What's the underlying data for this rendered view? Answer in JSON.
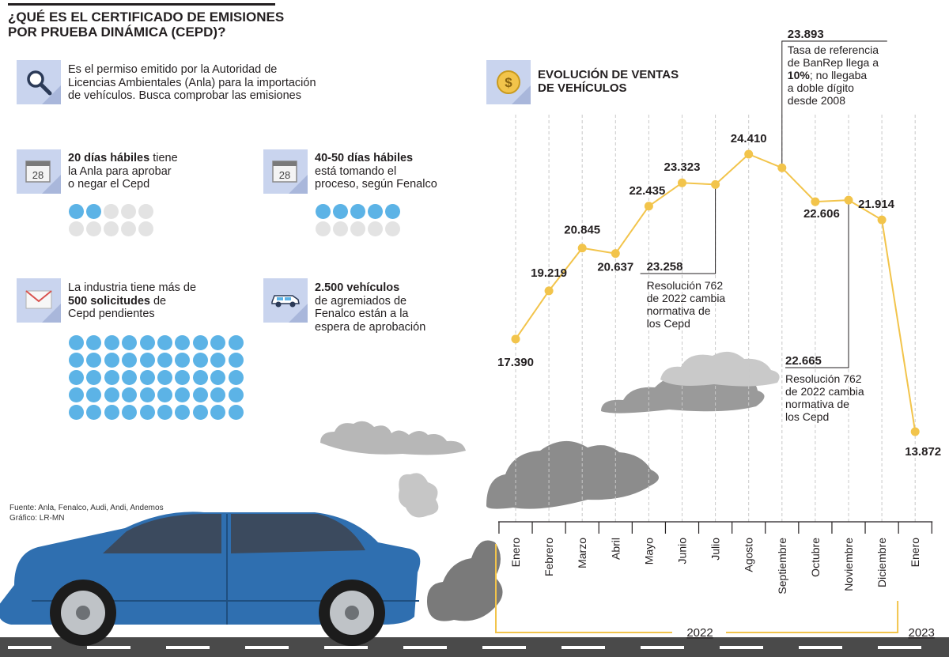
{
  "header": {
    "title_line1": "¿QUÉ ES EL CERTIFICADO DE EMISIONES",
    "title_line2": "POR PRUEBA DINÁMICA (CEPD)?"
  },
  "info": {
    "definition": {
      "icon": "magnifier-icon",
      "line1": "Es el permiso emitido por la Autoridad de",
      "line2": "Licencias Ambientales (Anla) para la importación",
      "line3": "de vehículos. Busca comprobar las emisiones"
    },
    "anla_days": {
      "icon": "calendar-icon",
      "calendar_number": "28",
      "bold": "20 días hábiles",
      "rest1": " tiene",
      "line2": "la Anla para aprobar",
      "line3": "o negar el Cepd",
      "filled_fraction": 0.2
    },
    "fenalco_days": {
      "icon": "calendar-icon",
      "calendar_number": "28",
      "bold": "40-50 días hábiles",
      "line2": "está tomando el",
      "line3": "proceso, según Fenalco",
      "filled_fraction": 0.5
    },
    "requests": {
      "icon": "envelope-icon",
      "line1": "La industria tiene más de",
      "bold": "500 solicitudes",
      "rest2": " de",
      "line3": "Cepd pendientes",
      "filled_count": 50
    },
    "vehicles": {
      "icon": "car-icon",
      "bold": "2.500 vehículos",
      "line2": "de agremiados de",
      "line3": "Fenalco están a la",
      "line4": "espera de aprobación"
    }
  },
  "source": {
    "line1": "Fuente: Anla, Fenalco, Audi, Andi, Andemos",
    "line2": "Gráfico: LR-MN"
  },
  "chart_section": {
    "icon": "coin-icon",
    "coin_symbol": "$",
    "title_line1": "EVOLUCIÓN DE VENTAS",
    "title_line2": "DE VEHÍCULOS"
  },
  "chart_data": {
    "type": "line",
    "title": "EVOLUCIÓN DE VENTAS DE VEHÍCULOS",
    "categories": [
      "Enero",
      "Febrero",
      "Marzo",
      "Abril",
      "Mayo",
      "Junio",
      "Julio",
      "Agosto",
      "Septiembre",
      "Octubre",
      "Noviembre",
      "Diciembre",
      "Enero"
    ],
    "values": [
      17390,
      19219,
      20845,
      20637,
      22435,
      23323,
      23258,
      24410,
      23893,
      22606,
      22665,
      21914,
      13872
    ],
    "labels": [
      "17.390",
      "19.219",
      "20.845",
      "20.637",
      "22.435",
      "23.323",
      "23.258",
      "24.410",
      "23.893",
      "22.606",
      "22.665",
      "21.914",
      "13.872"
    ],
    "years": [
      {
        "label": "2022",
        "from": 0,
        "to": 11
      },
      {
        "label": "2023",
        "from": 12,
        "to": 12
      }
    ],
    "line_color": "#f2c44b",
    "annotations": [
      {
        "index": 6,
        "lines": [
          "Resolución 762",
          "de 2022 cambia",
          "normativa de",
          "los Cepd"
        ]
      },
      {
        "index": 8,
        "lines": [
          "Tasa de referencia",
          "de BanRep llega a",
          "10%; no llegaba",
          "a doble dígito",
          "desde 2008"
        ],
        "bold_prefix_line": 2,
        "bold_prefix": "10%"
      },
      {
        "index": 10,
        "lines": [
          "Resolución 762",
          "de 2022 cambia",
          "normativa de",
          "los Cepd"
        ]
      }
    ]
  }
}
